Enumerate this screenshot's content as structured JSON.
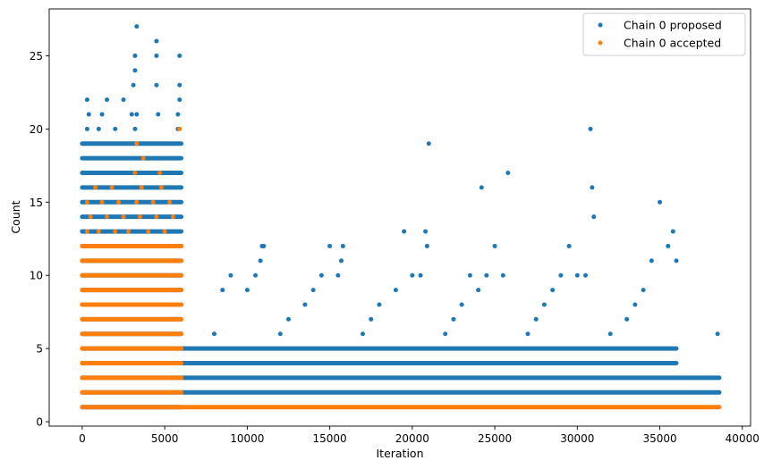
{
  "chart_data": {
    "type": "scatter",
    "title": "",
    "xlabel": "Iteration",
    "ylabel": "Count",
    "xlim": [
      -2000,
      40500
    ],
    "ylim": [
      -0.3,
      28.2
    ],
    "xticks": [
      0,
      5000,
      10000,
      15000,
      20000,
      25000,
      30000,
      35000,
      40000
    ],
    "xtick_labels": [
      "0",
      "5000",
      "10000",
      "15000",
      "20000",
      "25000",
      "30000",
      "35000",
      "40000"
    ],
    "yticks": [
      0,
      5,
      10,
      15,
      20,
      25
    ],
    "ytick_labels": [
      "0",
      "5",
      "10",
      "15",
      "20",
      "25"
    ],
    "grid": false,
    "legend_position": "upper right",
    "series": [
      {
        "name": "Chain 0 proposed",
        "color": "#1f77b4",
        "bands": [
          {
            "y": 1,
            "x_start": 0,
            "x_end": 6000
          },
          {
            "y": 2,
            "x_start": 0,
            "x_end": 38600
          },
          {
            "y": 3,
            "x_start": 0,
            "x_end": 38600
          },
          {
            "y": 4,
            "x_start": 0,
            "x_end": 36000
          },
          {
            "y": 5,
            "x_start": 0,
            "x_end": 36000
          },
          {
            "y": 6,
            "x_start": 0,
            "x_end": 6000
          },
          {
            "y": 7,
            "x_start": 0,
            "x_end": 6000
          },
          {
            "y": 8,
            "x_start": 0,
            "x_end": 6000
          },
          {
            "y": 9,
            "x_start": 0,
            "x_end": 6000
          },
          {
            "y": 10,
            "x_start": 0,
            "x_end": 6000
          },
          {
            "y": 11,
            "x_start": 0,
            "x_end": 6000
          },
          {
            "y": 12,
            "x_start": 0,
            "x_end": 6000
          },
          {
            "y": 13,
            "x_start": 0,
            "x_end": 6000
          },
          {
            "y": 14,
            "x_start": 0,
            "x_end": 6000
          },
          {
            "y": 15,
            "x_start": 0,
            "x_end": 6000
          },
          {
            "y": 16,
            "x_start": 0,
            "x_end": 6000
          },
          {
            "y": 17,
            "x_start": 0,
            "x_end": 6000
          },
          {
            "y": 18,
            "x_start": 0,
            "x_end": 6000
          },
          {
            "y": 19,
            "x_start": 0,
            "x_end": 6000
          }
        ],
        "points": [
          {
            "x": 300,
            "y": 22
          },
          {
            "x": 1500,
            "y": 22
          },
          {
            "x": 2500,
            "y": 22
          },
          {
            "x": 5900,
            "y": 22
          },
          {
            "x": 400,
            "y": 21
          },
          {
            "x": 1200,
            "y": 21
          },
          {
            "x": 3000,
            "y": 21
          },
          {
            "x": 3300,
            "y": 21
          },
          {
            "x": 4600,
            "y": 21
          },
          {
            "x": 5800,
            "y": 21
          },
          {
            "x": 300,
            "y": 20
          },
          {
            "x": 1000,
            "y": 20
          },
          {
            "x": 2000,
            "y": 20
          },
          {
            "x": 3200,
            "y": 20
          },
          {
            "x": 5800,
            "y": 20
          },
          {
            "x": 3100,
            "y": 23
          },
          {
            "x": 4500,
            "y": 23
          },
          {
            "x": 5900,
            "y": 23
          },
          {
            "x": 3200,
            "y": 24
          },
          {
            "x": 3200,
            "y": 25
          },
          {
            "x": 4500,
            "y": 25
          },
          {
            "x": 5900,
            "y": 25
          },
          {
            "x": 3300,
            "y": 27
          },
          {
            "x": 4500,
            "y": 26
          },
          {
            "x": 8000,
            "y": 6
          },
          {
            "x": 8500,
            "y": 9
          },
          {
            "x": 9000,
            "y": 10
          },
          {
            "x": 10000,
            "y": 9
          },
          {
            "x": 10500,
            "y": 10
          },
          {
            "x": 10800,
            "y": 11
          },
          {
            "x": 10900,
            "y": 12
          },
          {
            "x": 11000,
            "y": 12
          },
          {
            "x": 12000,
            "y": 6
          },
          {
            "x": 12500,
            "y": 7
          },
          {
            "x": 13500,
            "y": 8
          },
          {
            "x": 14000,
            "y": 9
          },
          {
            "x": 14500,
            "y": 10
          },
          {
            "x": 15000,
            "y": 12
          },
          {
            "x": 15500,
            "y": 10
          },
          {
            "x": 15700,
            "y": 11
          },
          {
            "x": 15800,
            "y": 12
          },
          {
            "x": 17000,
            "y": 6
          },
          {
            "x": 17500,
            "y": 7
          },
          {
            "x": 18000,
            "y": 8
          },
          {
            "x": 19000,
            "y": 9
          },
          {
            "x": 19500,
            "y": 13
          },
          {
            "x": 20000,
            "y": 10
          },
          {
            "x": 20500,
            "y": 10
          },
          {
            "x": 20800,
            "y": 13
          },
          {
            "x": 20900,
            "y": 12
          },
          {
            "x": 21000,
            "y": 19
          },
          {
            "x": 22000,
            "y": 6
          },
          {
            "x": 22500,
            "y": 7
          },
          {
            "x": 23000,
            "y": 8
          },
          {
            "x": 23500,
            "y": 10
          },
          {
            "x": 24000,
            "y": 9
          },
          {
            "x": 24200,
            "y": 16
          },
          {
            "x": 24500,
            "y": 10
          },
          {
            "x": 25000,
            "y": 12
          },
          {
            "x": 25500,
            "y": 10
          },
          {
            "x": 25800,
            "y": 17
          },
          {
            "x": 27000,
            "y": 6
          },
          {
            "x": 27500,
            "y": 7
          },
          {
            "x": 28000,
            "y": 8
          },
          {
            "x": 28500,
            "y": 9
          },
          {
            "x": 29000,
            "y": 10
          },
          {
            "x": 29500,
            "y": 12
          },
          {
            "x": 30000,
            "y": 10
          },
          {
            "x": 30500,
            "y": 10
          },
          {
            "x": 30800,
            "y": 20
          },
          {
            "x": 30900,
            "y": 16
          },
          {
            "x": 31000,
            "y": 14
          },
          {
            "x": 32000,
            "y": 6
          },
          {
            "x": 33000,
            "y": 7
          },
          {
            "x": 33500,
            "y": 8
          },
          {
            "x": 34000,
            "y": 9
          },
          {
            "x": 34500,
            "y": 11
          },
          {
            "x": 35000,
            "y": 15
          },
          {
            "x": 35500,
            "y": 12
          },
          {
            "x": 35800,
            "y": 13
          },
          {
            "x": 36000,
            "y": 11
          },
          {
            "x": 38500,
            "y": 6
          }
        ]
      },
      {
        "name": "Chain 0 accepted",
        "color": "#ff7f0e",
        "bands": [
          {
            "y": 1,
            "x_start": 0,
            "x_end": 38600
          },
          {
            "y": 2,
            "x_start": 0,
            "x_end": 6000
          },
          {
            "y": 3,
            "x_start": 0,
            "x_end": 6000
          },
          {
            "y": 4,
            "x_start": 0,
            "x_end": 6000
          },
          {
            "y": 5,
            "x_start": 0,
            "x_end": 6000
          },
          {
            "y": 6,
            "x_start": 0,
            "x_end": 6000
          },
          {
            "y": 7,
            "x_start": 0,
            "x_end": 6000
          },
          {
            "y": 8,
            "x_start": 0,
            "x_end": 6000
          },
          {
            "y": 9,
            "x_start": 0,
            "x_end": 6000
          },
          {
            "y": 10,
            "x_start": 0,
            "x_end": 6000
          },
          {
            "y": 11,
            "x_start": 0,
            "x_end": 6000
          },
          {
            "y": 12,
            "x_start": 0,
            "x_end": 6000
          }
        ],
        "points": [
          {
            "x": 300,
            "y": 13
          },
          {
            "x": 1000,
            "y": 13
          },
          {
            "x": 2000,
            "y": 13
          },
          {
            "x": 2800,
            "y": 13
          },
          {
            "x": 4000,
            "y": 13
          },
          {
            "x": 5000,
            "y": 13
          },
          {
            "x": 500,
            "y": 14
          },
          {
            "x": 1500,
            "y": 14
          },
          {
            "x": 2500,
            "y": 14
          },
          {
            "x": 3500,
            "y": 14
          },
          {
            "x": 4500,
            "y": 14
          },
          {
            "x": 5500,
            "y": 14
          },
          {
            "x": 300,
            "y": 15
          },
          {
            "x": 1200,
            "y": 15
          },
          {
            "x": 2200,
            "y": 15
          },
          {
            "x": 3300,
            "y": 15
          },
          {
            "x": 4300,
            "y": 15
          },
          {
            "x": 5300,
            "y": 15
          },
          {
            "x": 800,
            "y": 16
          },
          {
            "x": 1800,
            "y": 16
          },
          {
            "x": 3600,
            "y": 16
          },
          {
            "x": 4800,
            "y": 16
          },
          {
            "x": 3200,
            "y": 17
          },
          {
            "x": 4700,
            "y": 17
          },
          {
            "x": 3700,
            "y": 18
          },
          {
            "x": 3300,
            "y": 19
          },
          {
            "x": 5900,
            "y": 20
          }
        ]
      }
    ]
  }
}
